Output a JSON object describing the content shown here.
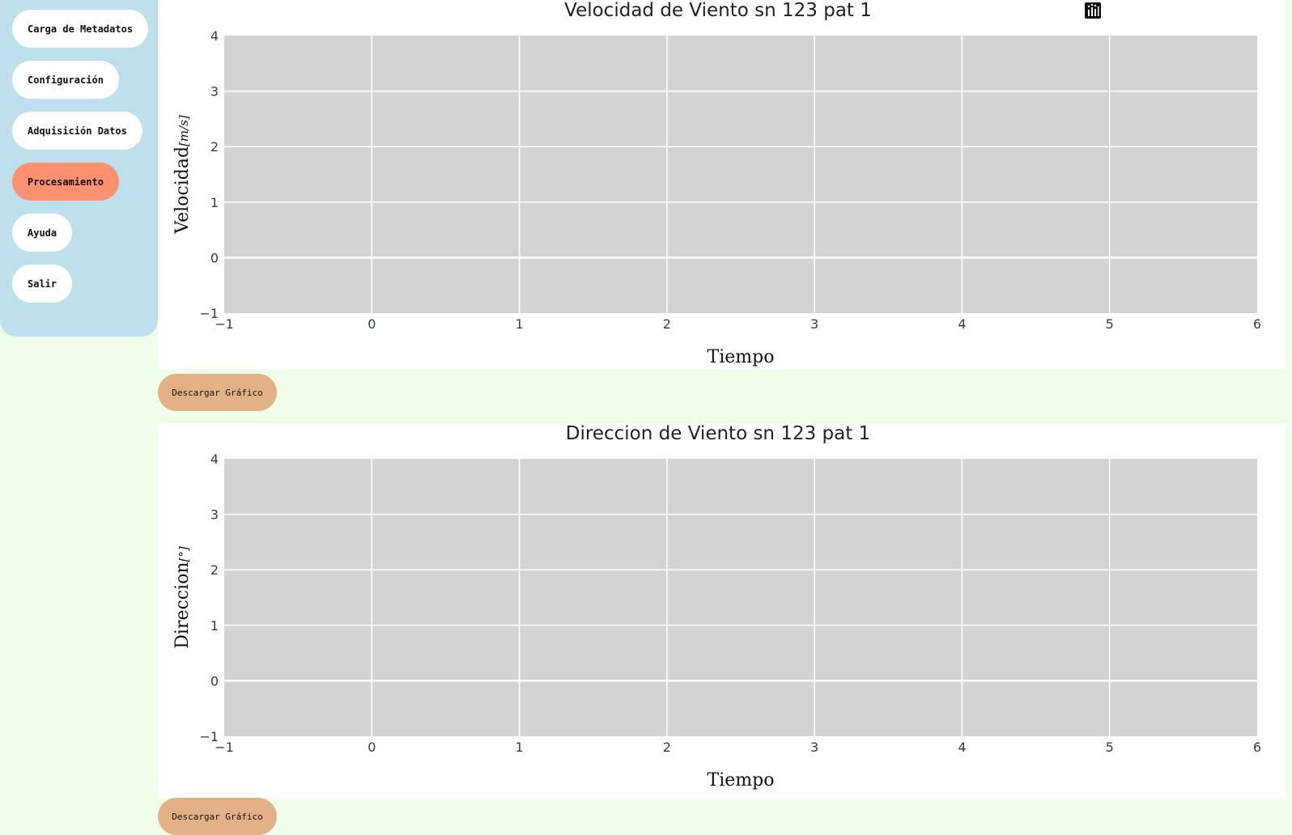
{
  "sidebar": {
    "items": [
      {
        "label": "Carga de Metadatos",
        "active": false
      },
      {
        "label": "Configuración",
        "active": false
      },
      {
        "label": "Adquisición Datos",
        "active": false
      },
      {
        "label": "Procesamiento",
        "active": true
      },
      {
        "label": "Ayuda",
        "active": false
      },
      {
        "label": "Salir",
        "active": false
      }
    ]
  },
  "colors": {
    "page_background": "#efffe9",
    "sidebar_background": "#bde0ec",
    "active_button": "#fd9170",
    "download_button": "#e4b085",
    "plot_area": "#d3d3d3",
    "tick_text": "#2a3f5f"
  },
  "modebar": {
    "icons": [
      "camera-icon",
      "zoom-icon",
      "pan-icon",
      "zoom-in-icon",
      "zoom-out-icon",
      "autoscale-icon",
      "reset-axes-icon",
      "plotly-logo-icon"
    ]
  },
  "download_label": "Descargar Gráfico",
  "chart_data": [
    {
      "type": "line",
      "title": "Velocidad de Viento sn 123 pat 1",
      "xlabel": "Tiempo",
      "ylabel": "Velocidad",
      "ylabel_unit": "[m/s]",
      "xlim": [
        -1,
        6
      ],
      "ylim": [
        -1,
        4
      ],
      "x_ticks": [
        "−1",
        "0",
        "1",
        "2",
        "3",
        "4",
        "5",
        "6"
      ],
      "y_ticks": [
        "−1",
        "0",
        "1",
        "2",
        "3",
        "4"
      ],
      "series": [],
      "grid": true
    },
    {
      "type": "line",
      "title": "Direccion de Viento sn 123 pat 1",
      "xlabel": "Tiempo",
      "ylabel": "Direccion",
      "ylabel_unit": "[°]",
      "xlim": [
        -1,
        6
      ],
      "ylim": [
        -1,
        4
      ],
      "x_ticks": [
        "−1",
        "0",
        "1",
        "2",
        "3",
        "4",
        "5",
        "6"
      ],
      "y_ticks": [
        "−1",
        "0",
        "1",
        "2",
        "3",
        "4"
      ],
      "series": [],
      "grid": true
    }
  ]
}
